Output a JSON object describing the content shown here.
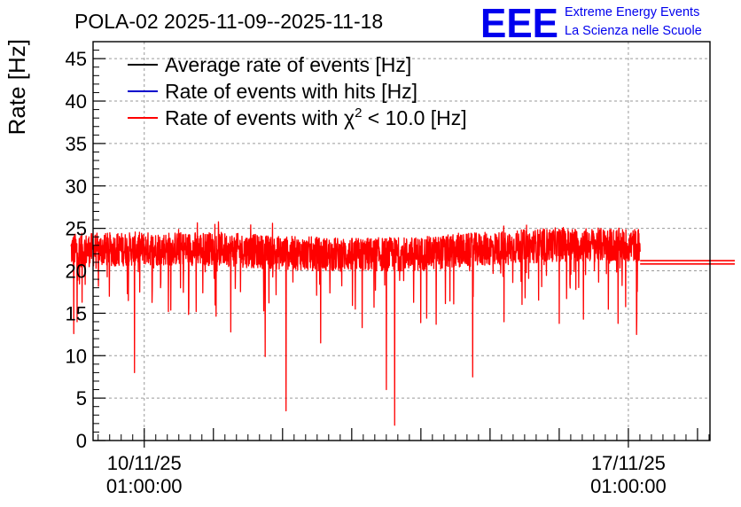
{
  "logo": {
    "mark": "EEE",
    "line1": "Extreme Energy Events",
    "line2": "La Scienza nelle Scuole",
    "color": "#0000ee"
  },
  "chart_data": {
    "type": "line",
    "title": "POLA-02 2025-11-09--2025-11-18",
    "xlabel": "",
    "ylabel": "Rate [Hz]",
    "ylim": [
      0,
      47
    ],
    "yticks": [
      0,
      5,
      10,
      15,
      20,
      25,
      30,
      35,
      40,
      45
    ],
    "xlim_days": [
      -0.74,
      8.18
    ],
    "xticks": [
      {
        "day": 0,
        "date": "10/11/25",
        "time": "01:00:00"
      },
      {
        "day": 7,
        "date": "17/11/25",
        "time": "01:00:00"
      }
    ],
    "grid": true,
    "legend_position": "top-left",
    "legend": [
      {
        "label": "Average rate of events [Hz]",
        "color": "#000000"
      },
      {
        "label": "Rate of events with hits [Hz]",
        "color": "#0000cc"
      },
      {
        "label_prefix": "Rate of events with ",
        "label_symbol": "χ",
        "label_sup": "2",
        "label_suffix": " < 10.0 [Hz]",
        "color": "#ff0000"
      }
    ],
    "series": [
      {
        "name": "Rate of events with chi2 < 10.0 [Hz]",
        "color": "#ff0000",
        "day_range": [
          -1.06,
          7.17
        ],
        "baseline": [
          {
            "day": -1.06,
            "value": 22.4
          },
          {
            "day": 0.0,
            "value": 22.6
          },
          {
            "day": 1.0,
            "value": 22.6
          },
          {
            "day": 2.0,
            "value": 22.1
          },
          {
            "day": 3.0,
            "value": 21.9
          },
          {
            "day": 4.0,
            "value": 22.0
          },
          {
            "day": 5.0,
            "value": 22.6
          },
          {
            "day": 6.0,
            "value": 23.1
          },
          {
            "day": 7.17,
            "value": 23.0
          }
        ],
        "noise_amplitude": 2.0,
        "dips": [
          {
            "day": -1.02,
            "value": 12.6
          },
          {
            "day": -0.97,
            "value": 14.0
          },
          {
            "day": -0.9,
            "value": 16.3
          },
          {
            "day": -0.14,
            "value": 8.0
          },
          {
            "day": 0.35,
            "value": 15.2
          },
          {
            "day": 0.75,
            "value": 15.2
          },
          {
            "day": 1.25,
            "value": 12.8
          },
          {
            "day": 1.75,
            "value": 9.9
          },
          {
            "day": 2.05,
            "value": 3.5
          },
          {
            "day": 2.55,
            "value": 11.5
          },
          {
            "day": 3.15,
            "value": 13.3
          },
          {
            "day": 3.5,
            "value": 6.0
          },
          {
            "day": 3.62,
            "value": 1.8
          },
          {
            "day": 4.22,
            "value": 13.7
          },
          {
            "day": 4.75,
            "value": 7.5
          },
          {
            "day": 5.2,
            "value": 14.0
          },
          {
            "day": 6.0,
            "value": 13.8
          },
          {
            "day": 6.35,
            "value": 14.3
          },
          {
            "day": 6.85,
            "value": 13.8
          },
          {
            "day": 7.12,
            "value": 12.5
          }
        ],
        "tail": [
          {
            "value": 20.8
          },
          {
            "value": 21.2
          }
        ]
      }
    ]
  }
}
